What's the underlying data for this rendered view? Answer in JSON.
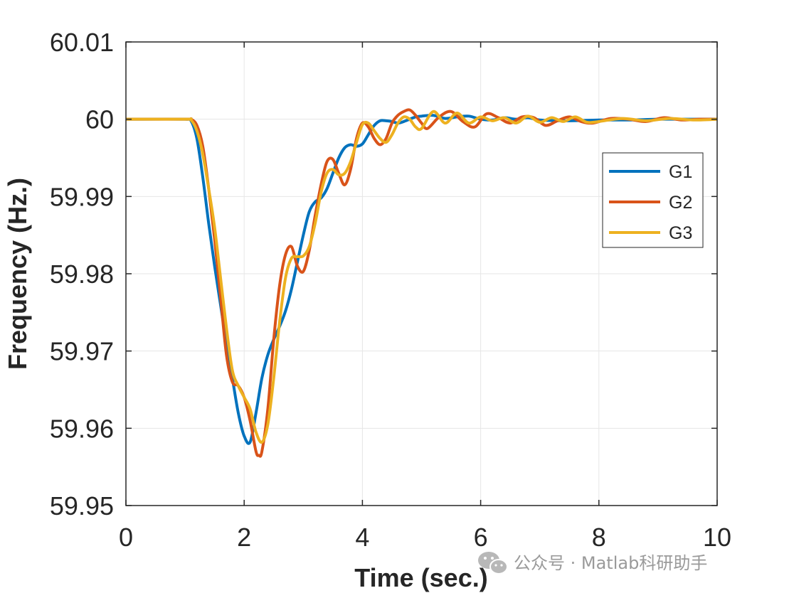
{
  "chart_data": {
    "type": "line",
    "xlabel": "Time (sec.)",
    "ylabel": "Frequency (Hz.)",
    "xlim": [
      0,
      10
    ],
    "ylim": [
      59.95,
      60.01
    ],
    "xticks": [
      0,
      2,
      4,
      6,
      8,
      10
    ],
    "xtick_labels": [
      "0",
      "2",
      "4",
      "6",
      "8",
      "10"
    ],
    "yticks": [
      59.95,
      59.96,
      59.97,
      59.98,
      59.99,
      60,
      60.01
    ],
    "ytick_labels": [
      "59.95",
      "59.96",
      "59.97",
      "59.98",
      "59.99",
      "60",
      "60.01"
    ],
    "grid": true,
    "legend": "right",
    "series": [
      {
        "name": "G1",
        "color": "#0072BD",
        "x": [
          0,
          1.0,
          1.1,
          1.2,
          1.3,
          1.4,
          1.5,
          1.6,
          1.7,
          1.8,
          1.9,
          2.0,
          2.1,
          2.2,
          2.3,
          2.4,
          2.5,
          2.6,
          2.7,
          2.8,
          2.9,
          3.0,
          3.1,
          3.2,
          3.3,
          3.4,
          3.5,
          3.6,
          3.7,
          3.8,
          3.9,
          4.0,
          4.1,
          4.2,
          4.3,
          4.4,
          4.5,
          4.6,
          4.7,
          4.8,
          4.9,
          5.0,
          5.2,
          5.4,
          5.6,
          5.8,
          6.0,
          6.2,
          6.4,
          6.6,
          6.8,
          7.0,
          7.5,
          8.0,
          8.5,
          9.0,
          9.5,
          10.0
        ],
        "y": [
          60.0,
          60.0,
          59.9998,
          59.9975,
          59.9925,
          59.9865,
          59.981,
          59.976,
          59.971,
          59.9665,
          59.962,
          59.959,
          59.9582,
          59.962,
          59.9665,
          59.9695,
          59.9715,
          59.9732,
          59.9752,
          59.978,
          59.9815,
          59.985,
          59.988,
          59.9893,
          59.9898,
          59.991,
          59.993,
          59.995,
          59.9963,
          59.9967,
          59.9965,
          59.9968,
          59.998,
          59.9992,
          59.9998,
          59.9998,
          59.9997,
          59.9995,
          59.9997,
          60.0,
          60.0003,
          60.0004,
          60.0005,
          60.0001,
          60.0003,
          60.0004,
          60.0,
          59.9999,
          60.0002,
          60.0,
          60.0002,
          59.9999,
          59.9998,
          59.9999,
          59.9999,
          60.0,
          60.0,
          60.0
        ]
      },
      {
        "name": "G2",
        "color": "#D95319",
        "x": [
          0,
          1.0,
          1.1,
          1.2,
          1.3,
          1.4,
          1.5,
          1.6,
          1.7,
          1.8,
          1.9,
          2.0,
          2.1,
          2.2,
          2.25,
          2.3,
          2.4,
          2.5,
          2.6,
          2.7,
          2.8,
          2.9,
          3.0,
          3.1,
          3.2,
          3.3,
          3.4,
          3.5,
          3.6,
          3.7,
          3.8,
          3.9,
          4.0,
          4.1,
          4.2,
          4.3,
          4.4,
          4.5,
          4.6,
          4.7,
          4.8,
          4.9,
          5.0,
          5.1,
          5.3,
          5.5,
          5.7,
          5.9,
          6.1,
          6.3,
          6.5,
          6.7,
          6.9,
          7.1,
          7.3,
          7.5,
          7.7,
          7.9,
          8.2,
          8.5,
          8.8,
          9.1,
          9.4,
          9.7,
          10.0
        ],
        "y": [
          60.0,
          60.0,
          60.0,
          59.9992,
          59.9965,
          59.991,
          59.9845,
          59.977,
          59.9695,
          59.966,
          59.9655,
          59.964,
          59.961,
          59.957,
          59.9565,
          59.957,
          59.9625,
          59.9715,
          59.9785,
          59.9825,
          59.9835,
          59.981,
          59.9803,
          59.983,
          59.9875,
          59.9915,
          59.9945,
          59.9948,
          59.993,
          59.9915,
          59.9935,
          59.9975,
          59.9995,
          59.999,
          59.9975,
          59.9967,
          59.9975,
          59.9995,
          60.0005,
          60.001,
          60.0012,
          60.0005,
          59.9995,
          59.9988,
          60.0003,
          60.001,
          59.9997,
          59.999,
          60.0007,
          60.0002,
          59.9995,
          60.0003,
          60.0002,
          59.9992,
          59.9998,
          60.0003,
          59.9997,
          59.9995,
          60.0001,
          60.0,
          59.9997,
          60.0002,
          59.9999,
          60.0,
          60.0
        ]
      },
      {
        "name": "G3",
        "color": "#EDB120",
        "x": [
          0,
          1.0,
          1.1,
          1.2,
          1.3,
          1.4,
          1.5,
          1.6,
          1.7,
          1.8,
          1.9,
          2.0,
          2.1,
          2.2,
          2.3,
          2.4,
          2.5,
          2.6,
          2.7,
          2.8,
          2.9,
          3.0,
          3.1,
          3.2,
          3.3,
          3.4,
          3.5,
          3.6,
          3.7,
          3.8,
          3.9,
          4.0,
          4.1,
          4.2,
          4.3,
          4.4,
          4.5,
          4.6,
          4.7,
          4.8,
          4.9,
          5.0,
          5.2,
          5.4,
          5.6,
          5.8,
          6.0,
          6.2,
          6.4,
          6.6,
          6.8,
          7.0,
          7.2,
          7.4,
          7.6,
          7.8,
          8.0,
          8.4,
          8.8,
          9.2,
          9.6,
          10.0
        ],
        "y": [
          60.0,
          60.0,
          59.9999,
          59.9985,
          59.9955,
          59.991,
          59.986,
          59.9795,
          59.973,
          59.9675,
          59.9655,
          59.964,
          59.9625,
          59.9595,
          59.9582,
          59.9605,
          59.9665,
          59.9738,
          59.9795,
          59.982,
          59.9822,
          59.9823,
          59.9835,
          59.9865,
          59.9905,
          59.993,
          59.9935,
          59.9928,
          59.993,
          59.9945,
          59.997,
          59.9993,
          59.9995,
          59.9985,
          59.9975,
          59.997,
          59.998,
          59.9995,
          60.0003,
          60.0,
          59.999,
          59.9988,
          60.001,
          59.9995,
          60.0008,
          59.9995,
          60.0003,
          59.9998,
          60.0002,
          59.9995,
          60.0004,
          59.9996,
          60.0002,
          59.9997,
          60.0003,
          59.9996,
          59.9997,
          60.0001,
          59.9998,
          60.0001,
          59.9999,
          60.0
        ]
      }
    ]
  },
  "watermark": {
    "icon": "wechat-icon",
    "text": "公众号 · Matlab科研助手"
  }
}
